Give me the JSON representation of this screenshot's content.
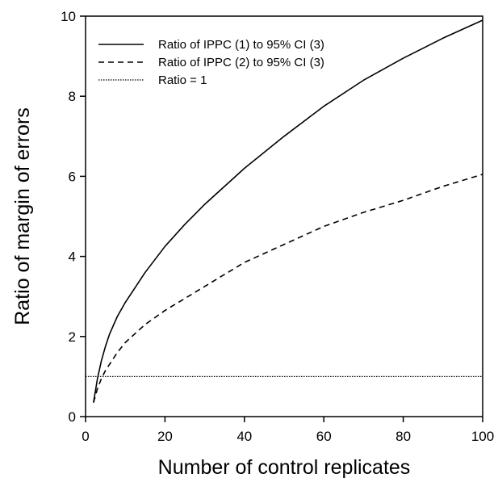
{
  "chart_data": {
    "type": "line",
    "title": "",
    "xlabel": "Number of control replicates",
    "ylabel": "Ratio of margin of errors",
    "xlim": [
      0,
      100
    ],
    "ylim": [
      0,
      10
    ],
    "xticks": [
      0,
      20,
      40,
      60,
      80,
      100
    ],
    "yticks": [
      0,
      2,
      4,
      6,
      8,
      10
    ],
    "xtick_labels": [
      "0",
      "20",
      "40",
      "60",
      "80",
      "100"
    ],
    "ytick_labels": [
      "0",
      "2",
      "4",
      "6",
      "8",
      "10"
    ],
    "grid": false,
    "legend_position": "top-left",
    "series": [
      {
        "name": "Ratio of IPPC (1) to 95% CI (3)",
        "style": "solid",
        "color": "#000000",
        "x": [
          2,
          3,
          4,
          5,
          6,
          8,
          10,
          15,
          20,
          25,
          30,
          40,
          50,
          60,
          70,
          80,
          90,
          100
        ],
        "y": [
          0.35,
          0.95,
          1.4,
          1.75,
          2.05,
          2.5,
          2.85,
          3.6,
          4.25,
          4.8,
          5.3,
          6.2,
          7.0,
          7.75,
          8.4,
          8.95,
          9.45,
          9.9
        ]
      },
      {
        "name": "Ratio of IPPC (2) to 95% CI (3)",
        "style": "dashed",
        "color": "#000000",
        "x": [
          2,
          3,
          4,
          5,
          6,
          8,
          10,
          15,
          20,
          25,
          30,
          40,
          50,
          60,
          70,
          80,
          90,
          100
        ],
        "y": [
          0.35,
          0.7,
          0.95,
          1.15,
          1.3,
          1.6,
          1.85,
          2.3,
          2.65,
          2.95,
          3.25,
          3.85,
          4.3,
          4.75,
          5.1,
          5.4,
          5.75,
          6.05
        ]
      },
      {
        "name": "Ratio = 1",
        "style": "dotted",
        "color": "#000000",
        "x": [
          0,
          100
        ],
        "y": [
          1,
          1
        ]
      }
    ]
  }
}
